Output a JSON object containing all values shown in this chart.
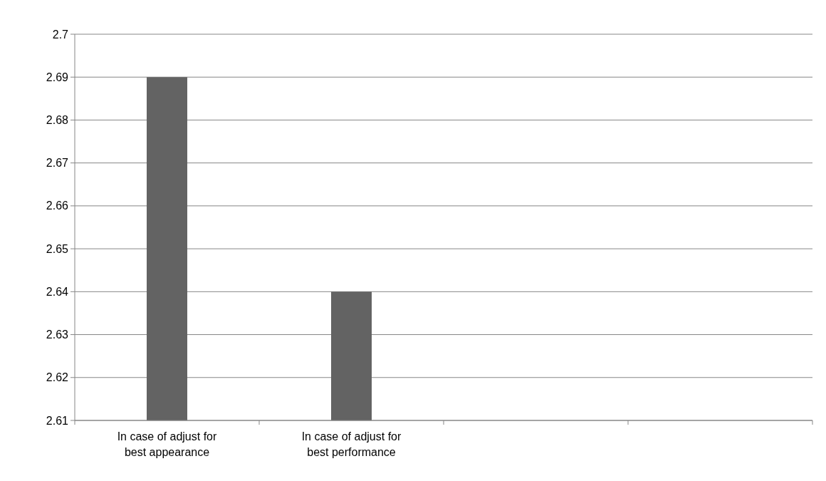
{
  "chart_data": {
    "type": "bar",
    "categories": [
      "In case of adjust for best appearance",
      "In case of adjust for best performance",
      null,
      null
    ],
    "values": [
      2.69,
      2.64,
      null,
      null
    ],
    "color": "#636363",
    "ylim": [
      2.61,
      2.7
    ],
    "yticks": [
      2.61,
      2.62,
      2.63,
      2.64,
      2.65,
      2.66,
      2.67,
      2.68,
      2.69,
      2.7
    ],
    "grid": "y"
  }
}
